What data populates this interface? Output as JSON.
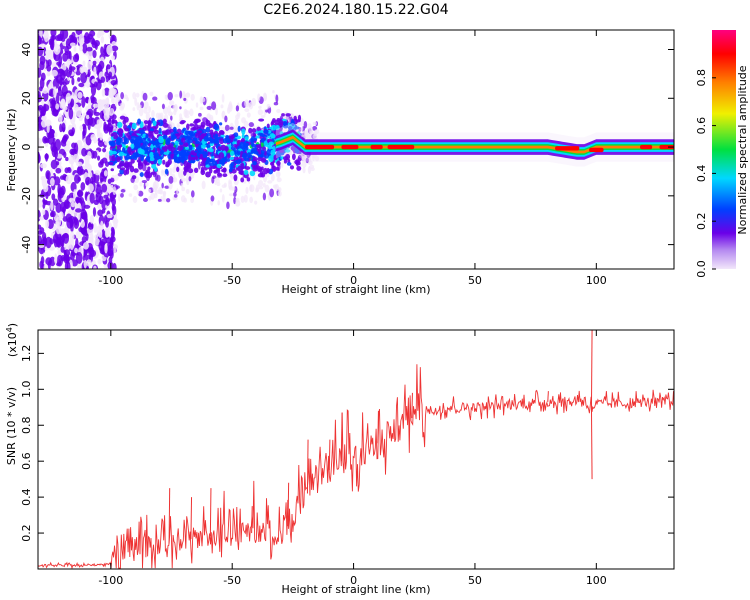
{
  "title": "C2E6.2024.180.15.22.G04",
  "chart_data": [
    {
      "type": "heatmap",
      "xlabel": "Height of straight line (km)",
      "ylabel": "Frequency (Hz)",
      "xlim": [
        -130,
        132
      ],
      "ylim": [
        -50,
        48
      ],
      "xticks": [
        -100,
        -50,
        0,
        50,
        100
      ],
      "yticks": [
        -40,
        -20,
        0,
        20,
        40
      ],
      "colorbar": {
        "label": "Normalized spectral amplitude",
        "range": [
          0,
          1
        ],
        "ticks": [
          "0.0",
          "0.2",
          "0.4",
          "0.6",
          "0.8"
        ],
        "colors": [
          "#f2e6fa",
          "#6a00e8",
          "#0040ff",
          "#00d8ff",
          "#00e040",
          "#f0f000",
          "#ff8000",
          "#ff0000",
          "#ff007f"
        ]
      },
      "ridge": {
        "description_points_x": [
          -100,
          -80,
          -60,
          -50,
          -40,
          -30,
          -25,
          -20,
          -10,
          0,
          50,
          80,
          92,
          95,
          100,
          132
        ],
        "frequency_y": [
          0,
          0,
          0,
          -3,
          -1,
          2,
          4,
          0,
          0,
          0,
          0,
          0,
          -2,
          -2,
          0,
          0
        ]
      }
    },
    {
      "type": "line",
      "xlabel": "Height of straight line (km)",
      "ylabel": "SNR (10 * v/v)",
      "y_multiplier_label": "(x10",
      "y_multiplier_exp": "4",
      "xlim": [
        -130,
        132
      ],
      "ylim": [
        0,
        1.33
      ],
      "xticks": [
        -100,
        -50,
        0,
        50,
        100
      ],
      "yticks": [
        "0.2",
        "0.4",
        "0.6",
        "0.8",
        "1.0",
        "1.2"
      ],
      "ytick_values": [
        0.2,
        0.4,
        0.6,
        0.8,
        1.0,
        1.2
      ],
      "color": "#ee3333",
      "series": [
        {
          "x": [
            -130,
            -110,
            -100,
            -95,
            -90,
            -80,
            -70,
            -60,
            -50,
            -40,
            -30,
            -25,
            -20,
            -15,
            -10,
            -5,
            0,
            5,
            10,
            15,
            20,
            25,
            30,
            40,
            50,
            60,
            70,
            80,
            90,
            95,
            97,
            98,
            100,
            110,
            120,
            130,
            132
          ],
          "y": [
            0.02,
            0.02,
            0.03,
            0.06,
            0.1,
            0.13,
            0.16,
            0.18,
            0.2,
            0.2,
            0.22,
            0.25,
            0.4,
            0.5,
            0.55,
            0.6,
            0.62,
            0.65,
            0.7,
            0.75,
            0.8,
            0.85,
            0.88,
            0.9,
            0.9,
            0.91,
            0.92,
            0.93,
            0.93,
            0.95,
            0.9,
            0.9,
            0.92,
            0.92,
            0.93,
            0.93,
            0.92
          ],
          "spikes": [
            [
              -76,
              0.45
            ],
            [
              -67,
              0.4
            ],
            [
              -59,
              0.45
            ],
            [
              -42,
              0.35
            ],
            [
              -27,
              0.48
            ],
            [
              -19,
              0.72
            ],
            [
              -10,
              0.72
            ],
            [
              -5,
              0.87
            ],
            [
              10,
              0.88
            ],
            [
              24,
              0.98
            ],
            [
              80,
              0.99
            ],
            [
              98,
              1.33
            ],
            [
              98,
              0.5
            ]
          ]
        }
      ]
    }
  ]
}
